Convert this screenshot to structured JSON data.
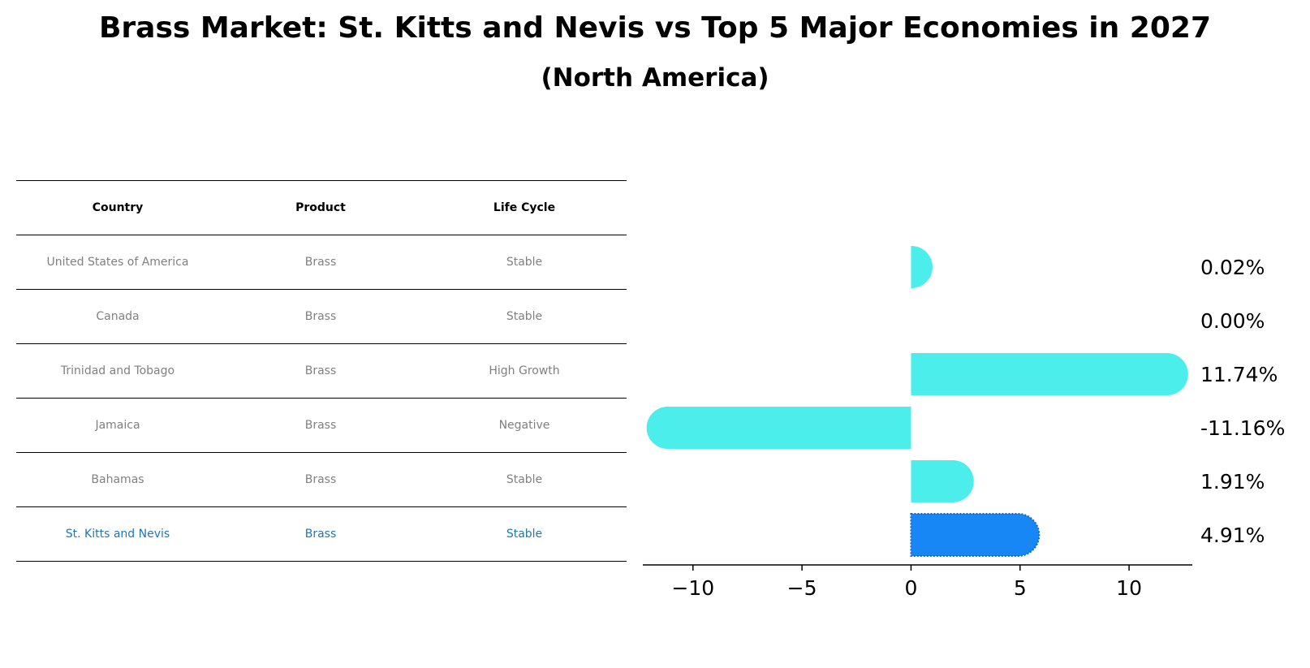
{
  "title": "Brass Market: St. Kitts and Nevis vs Top 5 Major Economies in 2027",
  "subtitle": "(North America)",
  "table": {
    "headers": [
      "Country",
      "Product",
      "Life Cycle"
    ],
    "rows": [
      [
        "United States of America",
        "Brass",
        "Stable"
      ],
      [
        "Canada",
        "Brass",
        "Stable"
      ],
      [
        "Trinidad and Tobago",
        "Brass",
        "High Growth"
      ],
      [
        "Jamaica",
        "Brass",
        "Negative"
      ],
      [
        "Bahamas",
        "Brass",
        "Stable"
      ],
      [
        "St. Kitts and Nevis",
        "Brass",
        "Stable"
      ]
    ]
  },
  "chart_data": {
    "type": "bar",
    "orientation": "horizontal",
    "categories": [
      "United States of America",
      "Canada",
      "Trinidad and Tobago",
      "Jamaica",
      "Bahamas",
      "St. Kitts and Nevis"
    ],
    "values": [
      0.02,
      0.0,
      11.74,
      -11.16,
      1.91,
      4.91
    ],
    "value_labels": [
      "0.02%",
      "0.00%",
      "11.74%",
      "-11.16%",
      "1.91%",
      "4.91%"
    ],
    "xlim": [
      -12.3,
      12.9
    ],
    "xticks": [
      -10,
      -5,
      0,
      5,
      10
    ],
    "xtick_labels": [
      "−10",
      "−5",
      "0",
      "5",
      "10"
    ],
    "highlight_index": 5,
    "colors": {
      "default": "#4beeea",
      "highlight": "#1787f5"
    },
    "grid": false
  }
}
